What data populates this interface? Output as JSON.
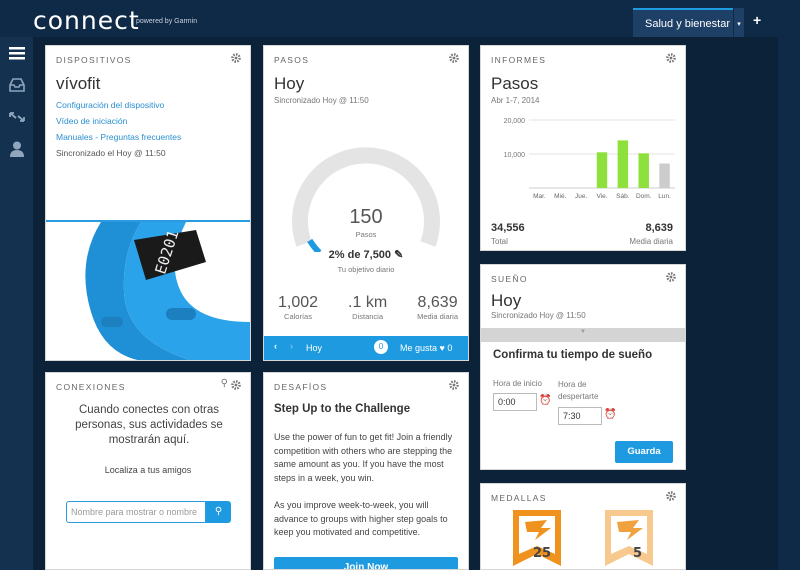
{
  "header": {
    "logo": "connect",
    "powered": "powered by Garmin",
    "tab_active": "Salud y bienestar",
    "tab_caret": "▾",
    "tab_add": "+"
  },
  "devices": {
    "title": "DISPOSITIVOS",
    "device": "vívofit",
    "links": [
      "Configuración del dispositivo",
      "Vídeo de iniciación",
      "Manuales - Preguntas frecuentes"
    ],
    "synced": "Sincronizado el Hoy @ 11:50",
    "band_display": "E0201"
  },
  "steps": {
    "title": "PASOS",
    "day": "Hoy",
    "synced": "Sincronizado Hoy @ 11:50",
    "count": "150",
    "count_label": "Pasos",
    "goal_text": "2% de 7,500",
    "goal_label": "Tu objetivo diario",
    "progress": 0.02,
    "stats": [
      {
        "value": "1,002",
        "label": "Calorías"
      },
      {
        "value": ".1 km",
        "label": "Distancia"
      },
      {
        "value": "8,639",
        "label": "Media diaria"
      }
    ],
    "footer": {
      "day": "Hoy",
      "comments": "0",
      "like_label": "Me gusta",
      "likes": "0"
    }
  },
  "reports": {
    "title": "INFORMES",
    "heading": "Pasos",
    "range": "Abr 1-7, 2014",
    "total": "34,556",
    "total_label": "Total",
    "avg": "8,639",
    "avg_label": "Media diaria",
    "chart_data": {
      "type": "bar",
      "categories": [
        "Mar.",
        "Mié.",
        "Jue.",
        "Vie.",
        "Sáb.",
        "Dom.",
        "Lun."
      ],
      "values": [
        0,
        0,
        0,
        10500,
        14000,
        10200,
        7200
      ],
      "ylim": [
        0,
        20000
      ],
      "yticks": [
        "20,000",
        "10,000"
      ],
      "colors": [
        "#8ee03c",
        "#8ee03c",
        "#8ee03c",
        "#8ee03c",
        "#8ee03c",
        "#8ee03c",
        "#cccccc"
      ]
    }
  },
  "sleep": {
    "title": "SUEÑO",
    "day": "Hoy",
    "synced": "Sincronizado Hoy @ 11:50",
    "confirm": "Confirma tu tiempo de sueño",
    "start_label": "Hora de inicio",
    "start_value": "0:00",
    "end_label": "Hora de despertarte",
    "end_value": "7:30",
    "save": "Guarda"
  },
  "connections": {
    "title": "CONEXIONES",
    "message": "Cuando conectes con otras personas, sus actividades se mostrarán aquí.",
    "find": "Localiza a tus amigos",
    "placeholder": "Nombre para mostrar o nombre"
  },
  "challenges": {
    "title": "DESAFÍOS",
    "heading": "Step Up to the Challenge",
    "p1": "Use the power of fun to get fit! Join a friendly competition with others who are stepping the same amount as you. If you have the most steps in a week, you win.",
    "p2": "As you improve week-to-week, you will advance to groups with higher step goals to keep you motivated and competitive.",
    "button": "Join Now"
  },
  "medals": {
    "title": "MEDALLAS",
    "badges": [
      "25",
      "5"
    ]
  }
}
